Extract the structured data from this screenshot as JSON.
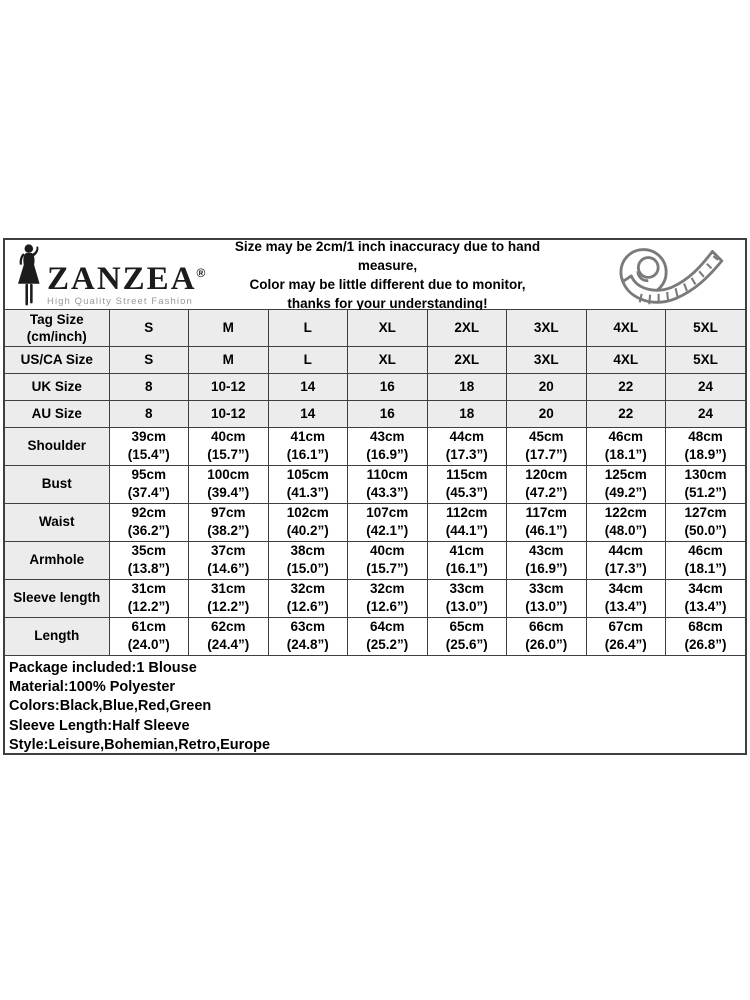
{
  "colors": {
    "background": "#ffffff",
    "grid_border": "#3f3f3f",
    "shaded_cell": "#ececec",
    "text": "#000000",
    "brand_text": "#1c1c1c",
    "tagline": "#999999",
    "tape_icon": "#7a7a7a"
  },
  "brand": {
    "name": "ZANZEA",
    "registered": "®",
    "tagline": "High Quality Street Fashion"
  },
  "notice": {
    "lines": [
      "Size may be 2cm/1 inch inaccuracy due to hand measure,",
      "Color may be little different due to monitor,",
      "thanks for your understanding!"
    ]
  },
  "icons": {
    "woman_silhouette": "woman-silhouette-icon",
    "tape_measure": "tape-measure-icon"
  },
  "chart_data": {
    "type": "table",
    "columns": [
      "S",
      "M",
      "L",
      "XL",
      "2XL",
      "3XL",
      "4XL",
      "5XL"
    ],
    "rows": [
      {
        "key": "tag-size",
        "shaded": true,
        "label_lines": [
          "Tag Size",
          "(cm/inch)"
        ],
        "values": [
          "S",
          "M",
          "L",
          "XL",
          "2XL",
          "3XL",
          "4XL",
          "5XL"
        ]
      },
      {
        "key": "us-ca-size",
        "shaded": true,
        "label_lines": [
          "US/CA Size"
        ],
        "values": [
          "S",
          "M",
          "L",
          "XL",
          "2XL",
          "3XL",
          "4XL",
          "5XL"
        ]
      },
      {
        "key": "uk-size",
        "shaded": true,
        "label_lines": [
          "UK Size"
        ],
        "values": [
          "8",
          "10-12",
          "14",
          "16",
          "18",
          "20",
          "22",
          "24"
        ]
      },
      {
        "key": "au-size",
        "shaded": true,
        "label_lines": [
          "AU Size"
        ],
        "values": [
          "8",
          "10-12",
          "14",
          "16",
          "18",
          "20",
          "22",
          "24"
        ]
      },
      {
        "key": "shoulder",
        "shaded": false,
        "label_lines": [
          "Shoulder"
        ],
        "values": [
          {
            "cm": "39cm",
            "in": "(15.4”)"
          },
          {
            "cm": "40cm",
            "in": "(15.7”)"
          },
          {
            "cm": "41cm",
            "in": "(16.1”)"
          },
          {
            "cm": "43cm",
            "in": "(16.9”)"
          },
          {
            "cm": "44cm",
            "in": "(17.3”)"
          },
          {
            "cm": "45cm",
            "in": "(17.7”)"
          },
          {
            "cm": "46cm",
            "in": "(18.1”)"
          },
          {
            "cm": "48cm",
            "in": "(18.9”)"
          }
        ]
      },
      {
        "key": "bust",
        "shaded": false,
        "label_lines": [
          "Bust"
        ],
        "values": [
          {
            "cm": "95cm",
            "in": "(37.4”)"
          },
          {
            "cm": "100cm",
            "in": "(39.4”)"
          },
          {
            "cm": "105cm",
            "in": "(41.3”)"
          },
          {
            "cm": "110cm",
            "in": "(43.3”)"
          },
          {
            "cm": "115cm",
            "in": "(45.3”)"
          },
          {
            "cm": "120cm",
            "in": "(47.2”)"
          },
          {
            "cm": "125cm",
            "in": "(49.2”)"
          },
          {
            "cm": "130cm",
            "in": "(51.2”)"
          }
        ]
      },
      {
        "key": "waist",
        "shaded": false,
        "label_lines": [
          "Waist"
        ],
        "values": [
          {
            "cm": "92cm",
            "in": "(36.2”)"
          },
          {
            "cm": "97cm",
            "in": "(38.2”)"
          },
          {
            "cm": "102cm",
            "in": "(40.2”)"
          },
          {
            "cm": "107cm",
            "in": "(42.1”)"
          },
          {
            "cm": "112cm",
            "in": "(44.1”)"
          },
          {
            "cm": "117cm",
            "in": "(46.1”)"
          },
          {
            "cm": "122cm",
            "in": "(48.0”)"
          },
          {
            "cm": "127cm",
            "in": "(50.0”)"
          }
        ]
      },
      {
        "key": "armhole",
        "shaded": false,
        "label_lines": [
          "Armhole"
        ],
        "values": [
          {
            "cm": "35cm",
            "in": "(13.8”)"
          },
          {
            "cm": "37cm",
            "in": "(14.6”)"
          },
          {
            "cm": "38cm",
            "in": "(15.0”)"
          },
          {
            "cm": "40cm",
            "in": "(15.7”)"
          },
          {
            "cm": "41cm",
            "in": "(16.1”)"
          },
          {
            "cm": "43cm",
            "in": "(16.9”)"
          },
          {
            "cm": "44cm",
            "in": "(17.3”)"
          },
          {
            "cm": "46cm",
            "in": "(18.1”)"
          }
        ]
      },
      {
        "key": "sleeve-length",
        "shaded": false,
        "label_lines": [
          "Sleeve length"
        ],
        "values": [
          {
            "cm": "31cm",
            "in": "(12.2”)"
          },
          {
            "cm": "31cm",
            "in": "(12.2”)"
          },
          {
            "cm": "32cm",
            "in": "(12.6”)"
          },
          {
            "cm": "32cm",
            "in": "(12.6”)"
          },
          {
            "cm": "33cm",
            "in": "(13.0”)"
          },
          {
            "cm": "33cm",
            "in": "(13.0”)"
          },
          {
            "cm": "34cm",
            "in": "(13.4”)"
          },
          {
            "cm": "34cm",
            "in": "(13.4”)"
          }
        ]
      },
      {
        "key": "length",
        "shaded": false,
        "label_lines": [
          "Length"
        ],
        "values": [
          {
            "cm": "61cm",
            "in": "(24.0”)"
          },
          {
            "cm": "62cm",
            "in": "(24.4”)"
          },
          {
            "cm": "63cm",
            "in": "(24.8”)"
          },
          {
            "cm": "64cm",
            "in": "(25.2”)"
          },
          {
            "cm": "65cm",
            "in": "(25.6”)"
          },
          {
            "cm": "66cm",
            "in": "(26.0”)"
          },
          {
            "cm": "67cm",
            "in": "(26.4”)"
          },
          {
            "cm": "68cm",
            "in": "(26.8”)"
          }
        ]
      }
    ]
  },
  "info": {
    "lines": [
      "Package included:1 Blouse",
      "Material:100% Polyester",
      "Colors:Black,Blue,Red,Green",
      "Sleeve Length:Half Sleeve",
      "Style:Leisure,Bohemian,Retro,Europe"
    ]
  }
}
